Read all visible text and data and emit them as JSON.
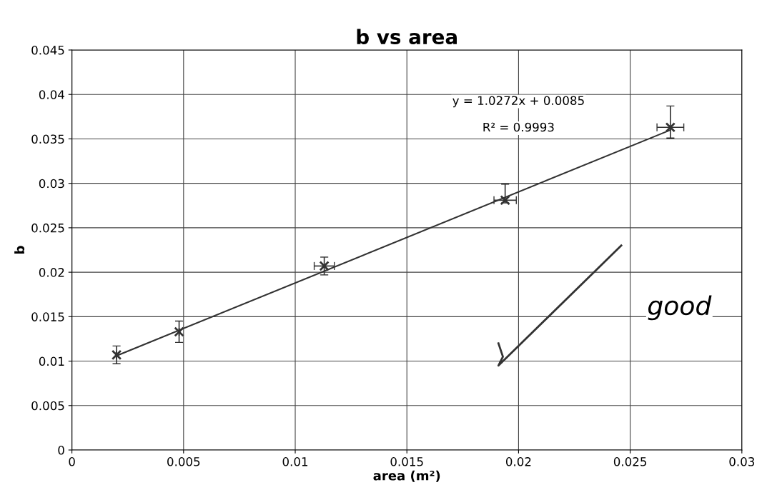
{
  "chart_data": {
    "type": "scatter",
    "title": "b vs area",
    "xlabel": "area (m²)",
    "ylabel": "b",
    "x": [
      0.002,
      0.0048,
      0.0113,
      0.0194,
      0.0268
    ],
    "series": [
      {
        "color": "#333333",
        "values": [
          0.0107,
          0.0133,
          0.0207,
          0.0281,
          0.0363
        ],
        "errors": [
          0.001,
          0.0012,
          0.001,
          [
            0.0278,
            0.0299
          ],
          [
            0.0351,
            0.0387
          ]
        ],
        "xerrors": [
          null,
          null,
          0.00045,
          0.0005,
          0.0006
        ],
        "marker": "cross"
      },
      {
        "type": "line",
        "color": "#333333",
        "x": [
          0.002,
          0.0268
        ],
        "values": [
          0.0106,
          0.036
        ],
        "marker": "none"
      }
    ],
    "xlim": [
      0,
      0.03
    ],
    "ylim": [
      0,
      0.045
    ],
    "xticks": [
      0,
      0.005,
      0.01,
      0.015,
      0.02,
      0.025,
      0.03
    ],
    "yticks": [
      0,
      0.005,
      0.01,
      0.015,
      0.02,
      0.025,
      0.03,
      0.035,
      0.04,
      0.045
    ],
    "grid": true,
    "annotations": [
      "y = 1.0272x + 0.0085",
      "R² = 0.9993",
      "good"
    ]
  }
}
